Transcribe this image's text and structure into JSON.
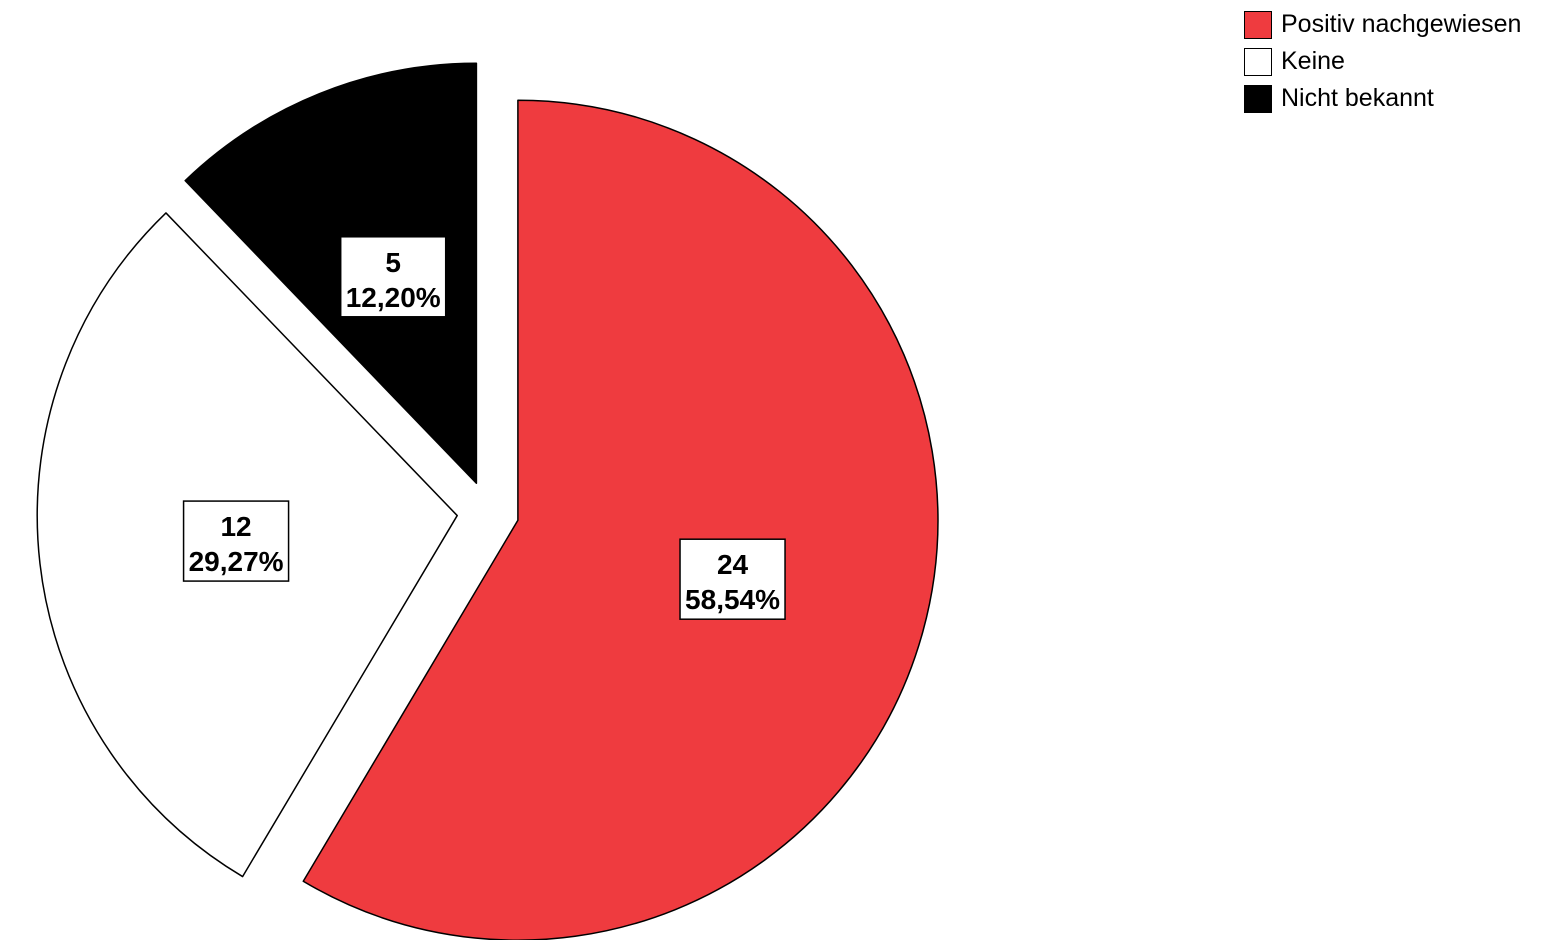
{
  "chart_data": {
    "type": "pie",
    "title": "",
    "start_angle_deg": 0,
    "direction": "clockwise",
    "exploded": true,
    "legend_position": "top-right",
    "slices": [
      {
        "name": "Positiv nachgewiesen",
        "value": 24,
        "percent_label": "58,54%",
        "color": "#ef3b3f"
      },
      {
        "name": "Keine",
        "value": 12,
        "percent_label": "29,27%",
        "color": "#ffffff"
      },
      {
        "name": "Nicht bekannt",
        "value": 5,
        "percent_label": "12,20%",
        "color": "#000000"
      }
    ]
  }
}
